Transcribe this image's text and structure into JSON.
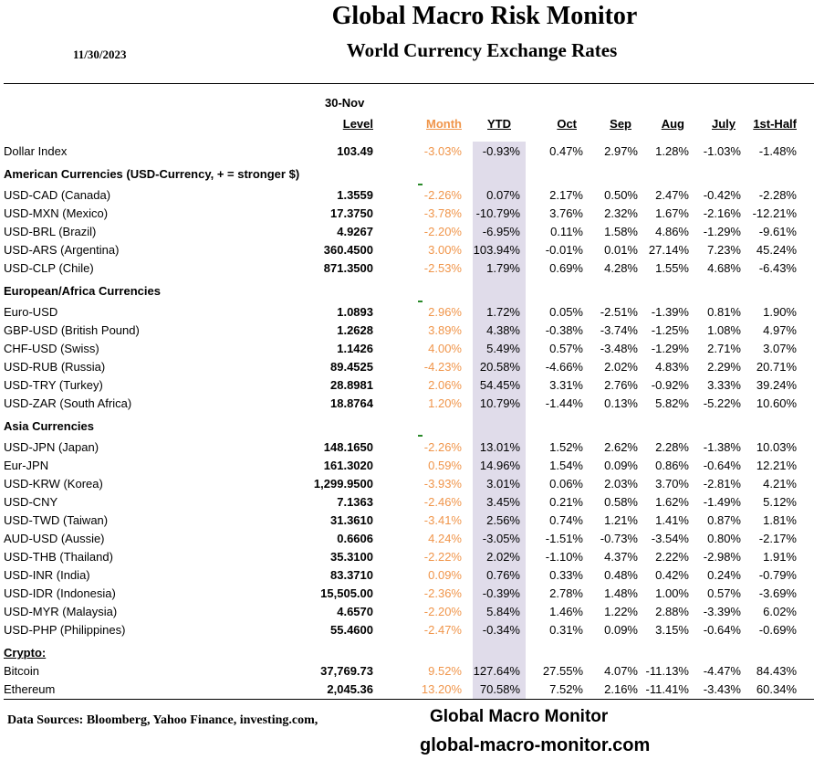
{
  "header": {
    "title": "Global Macro Risk Monitor",
    "subtitle": "World Currency Exchange Rates",
    "date": "11/30/2023"
  },
  "columns": {
    "level_date": "30-Nov",
    "level": "Level",
    "month": "Month",
    "ytd": "YTD",
    "oct": "Oct",
    "sep": "Sep",
    "aug": "Aug",
    "july": "July",
    "half": "1st-Half"
  },
  "rows": [
    {
      "type": "row",
      "name": "Dollar Index",
      "level": "103.49",
      "month": "-3.03%",
      "ytd": "-0.93%",
      "oct": "0.47%",
      "sep": "2.97%",
      "aug": "1.28%",
      "july": "-1.03%",
      "half": "-1.48%"
    },
    {
      "type": "section",
      "name": "American Currencies (USD-Currency, + = stronger $)"
    },
    {
      "type": "row",
      "name": "USD-CAD (Canada)",
      "level": "1.3559",
      "month": "-2.26%",
      "ytd": "0.07%",
      "oct": "2.17%",
      "sep": "0.50%",
      "aug": "2.47%",
      "july": "-0.42%",
      "half": "-2.28%"
    },
    {
      "type": "row",
      "name": "USD-MXN  (Mexico)",
      "level": "17.3750",
      "month": "-3.78%",
      "ytd": "-10.79%",
      "oct": "3.76%",
      "sep": "2.32%",
      "aug": "1.67%",
      "july": "-2.16%",
      "half": "-12.21%"
    },
    {
      "type": "row",
      "name": "USD-BRL (Brazil)",
      "level": "4.9267",
      "month": "-2.20%",
      "ytd": "-6.95%",
      "oct": "0.11%",
      "sep": "1.58%",
      "aug": "4.86%",
      "july": "-1.29%",
      "half": "-9.61%"
    },
    {
      "type": "row",
      "name": "USD-ARS (Argentina)",
      "level": "360.4500",
      "month": "3.00%",
      "ytd": "103.94%",
      "oct": "-0.01%",
      "sep": "0.01%",
      "aug": "27.14%",
      "july": "7.23%",
      "half": "45.24%"
    },
    {
      "type": "row",
      "name": "USD-CLP (Chile)",
      "level": "871.3500",
      "month": "-2.53%",
      "ytd": "1.79%",
      "oct": "0.69%",
      "sep": "4.28%",
      "aug": "1.55%",
      "july": "4.68%",
      "half": "-6.43%"
    },
    {
      "type": "section",
      "name": "European/Africa Currencies"
    },
    {
      "type": "row",
      "name": "Euro-USD",
      "level": "1.0893",
      "month": "2.96%",
      "ytd": "1.72%",
      "oct": "0.05%",
      "sep": "-2.51%",
      "aug": "-1.39%",
      "july": "0.81%",
      "half": "1.90%"
    },
    {
      "type": "row",
      "name": "GBP-USD (British Pound)",
      "level": "1.2628",
      "month": "3.89%",
      "ytd": "4.38%",
      "oct": "-0.38%",
      "sep": "-3.74%",
      "aug": "-1.25%",
      "july": "1.08%",
      "half": "4.97%"
    },
    {
      "type": "row",
      "name": "CHF-USD (Swiss)",
      "level": "1.1426",
      "month": "4.00%",
      "ytd": "5.49%",
      "oct": "0.57%",
      "sep": "-3.48%",
      "aug": "-1.29%",
      "july": "2.71%",
      "half": "3.07%"
    },
    {
      "type": "row",
      "name": "USD-RUB (Russia)",
      "level": "89.4525",
      "month": "-4.23%",
      "ytd": "20.58%",
      "oct": "-4.66%",
      "sep": "2.02%",
      "aug": "4.83%",
      "july": "2.29%",
      "half": "20.71%"
    },
    {
      "type": "row",
      "name": "USD-TRY (Turkey)",
      "level": "28.8981",
      "month": "2.06%",
      "ytd": "54.45%",
      "oct": "3.31%",
      "sep": "2.76%",
      "aug": "-0.92%",
      "july": "3.33%",
      "half": "39.24%"
    },
    {
      "type": "row",
      "name": "USD-ZAR (South Africa)",
      "level": "18.8764",
      "month": "1.20%",
      "ytd": "10.79%",
      "oct": "-1.44%",
      "sep": "0.13%",
      "aug": "5.82%",
      "july": "-5.22%",
      "half": "10.60%"
    },
    {
      "type": "section",
      "name": "Asia Currencies"
    },
    {
      "type": "row",
      "name": "USD-JPN (Japan)",
      "level": "148.1650",
      "month": "-2.26%",
      "ytd": "13.01%",
      "oct": "1.52%",
      "sep": "2.62%",
      "aug": "2.28%",
      "july": "-1.38%",
      "half": "10.03%"
    },
    {
      "type": "row",
      "name": "Eur-JPN",
      "level": "161.3020",
      "month": "0.59%",
      "ytd": "14.96%",
      "oct": "1.54%",
      "sep": "0.09%",
      "aug": "0.86%",
      "july": "-0.64%",
      "half": "12.21%"
    },
    {
      "type": "row",
      "name": "USD-KRW (Korea)",
      "level": "1,299.9500",
      "month": "-3.93%",
      "ytd": "3.01%",
      "oct": "0.06%",
      "sep": "2.03%",
      "aug": "3.70%",
      "july": "-2.81%",
      "half": "4.21%"
    },
    {
      "type": "row",
      "name": "USD-CNY",
      "level": "7.1363",
      "month": "-2.46%",
      "ytd": "3.45%",
      "oct": "0.21%",
      "sep": "0.58%",
      "aug": "1.62%",
      "july": "-1.49%",
      "half": "5.12%"
    },
    {
      "type": "row",
      "name": "USD-TWD (Taiwan)",
      "level": "31.3610",
      "month": "-3.41%",
      "ytd": "2.56%",
      "oct": "0.74%",
      "sep": "1.21%",
      "aug": "1.41%",
      "july": "0.87%",
      "half": "1.81%"
    },
    {
      "type": "row",
      "name": "AUD-USD (Aussie)",
      "level": "0.6606",
      "month": "4.24%",
      "ytd": "-3.05%",
      "oct": "-1.51%",
      "sep": "-0.73%",
      "aug": "-3.54%",
      "july": "0.80%",
      "half": "-2.17%"
    },
    {
      "type": "row",
      "name": "USD-THB  (Thailand)",
      "level": "35.3100",
      "month": "-2.22%",
      "ytd": "2.02%",
      "oct": "-1.10%",
      "sep": "4.37%",
      "aug": "2.22%",
      "july": "-2.98%",
      "half": "1.91%"
    },
    {
      "type": "row",
      "name": "USD-INR (India)",
      "level": "83.3710",
      "month": "0.09%",
      "ytd": "0.76%",
      "oct": "0.33%",
      "sep": "0.48%",
      "aug": "0.42%",
      "july": "0.24%",
      "half": "-0.79%"
    },
    {
      "type": "row",
      "name": "USD-IDR (Indonesia)",
      "level": "15,505.00",
      "month": "-2.36%",
      "ytd": "-0.39%",
      "oct": "2.78%",
      "sep": "1.48%",
      "aug": "1.00%",
      "july": "0.57%",
      "half": "-3.69%"
    },
    {
      "type": "row",
      "name": "USD-MYR (Malaysia)",
      "level": "4.6570",
      "month": "-2.20%",
      "ytd": "5.84%",
      "oct": "1.46%",
      "sep": "1.22%",
      "aug": "2.88%",
      "july": "-3.39%",
      "half": "6.02%"
    },
    {
      "type": "row",
      "name": "USD-PHP (Philippines)",
      "level": "55.4600",
      "month": "-2.47%",
      "ytd": "-0.34%",
      "oct": "0.31%",
      "sep": "0.09%",
      "aug": "3.15%",
      "july": "-0.64%",
      "half": "-0.69%"
    },
    {
      "type": "section",
      "name": "Crypto:",
      "underline": true
    },
    {
      "type": "row",
      "name": "Bitcoin",
      "level": "37,769.73",
      "month": "9.52%",
      "ytd": "127.64%",
      "oct": "27.55%",
      "sep": "4.07%",
      "aug": "-11.13%",
      "july": "-4.47%",
      "half": "84.43%"
    },
    {
      "type": "row",
      "name": "Ethereum",
      "level": "2,045.36",
      "month": "13.20%",
      "ytd": "70.58%",
      "oct": "7.52%",
      "sep": "2.16%",
      "aug": "-11.41%",
      "july": "-3.43%",
      "half": "60.34%"
    }
  ],
  "footer": {
    "sources": "Data Sources:  Bloomberg,  Yahoo Finance, investing.com,",
    "brand": "Global Macro Monitor",
    "url": "global-macro-monitor.com"
  },
  "colors": {
    "month": "#f0954a",
    "ytd_shade": "#e0dcea"
  }
}
